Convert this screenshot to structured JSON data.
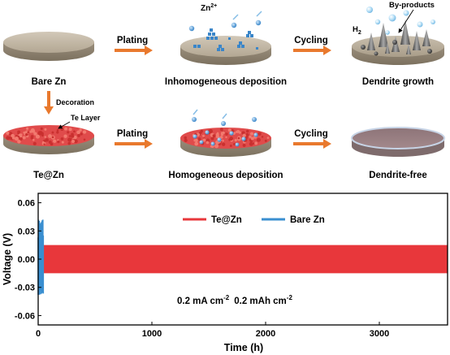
{
  "schematic": {
    "row1": {
      "bare_zn": "Bare Zn",
      "plating": "Plating",
      "inhomogeneous": "Inhomogeneous deposition",
      "cycling": "Cycling",
      "dendrite_growth": "Dendrite growth",
      "zn_ion": "Zn",
      "zn_ion_sup": "2+",
      "h2": "H",
      "h2_sub": "2",
      "byproducts": "By-products"
    },
    "decoration": "Decoration",
    "row2": {
      "te_layer": "Te Layer",
      "te_zn": "Te@Zn",
      "plating": "Plating",
      "homogeneous": "Homogeneous deposition",
      "cycling": "Cycling",
      "dendrite_free": "Dendrite-free"
    }
  },
  "chart_data": {
    "type": "line",
    "xlabel": "Time (h)",
    "ylabel": "Voltage (V)",
    "xlim": [
      0,
      3600
    ],
    "ylim": [
      -0.07,
      0.07
    ],
    "xticks": [
      "0",
      "1000",
      "2000",
      "3000"
    ],
    "yticks": [
      "0.06",
      "0.03",
      "0.00",
      "-0.03",
      "-0.06"
    ],
    "series": [
      {
        "name": "Te@Zn",
        "color": "#e8373b",
        "x_range": [
          40,
          3600
        ],
        "upper": 0.015,
        "lower": -0.015
      },
      {
        "name": "Bare Zn",
        "color": "#3a8fd0",
        "x_range": [
          0,
          45
        ],
        "upper": 0.042,
        "lower": -0.038
      }
    ],
    "annotation": {
      "part1": "0.2 mA cm",
      "sup1": "-2",
      "part2": "0.2 mAh cm",
      "sup2": "-2"
    }
  }
}
